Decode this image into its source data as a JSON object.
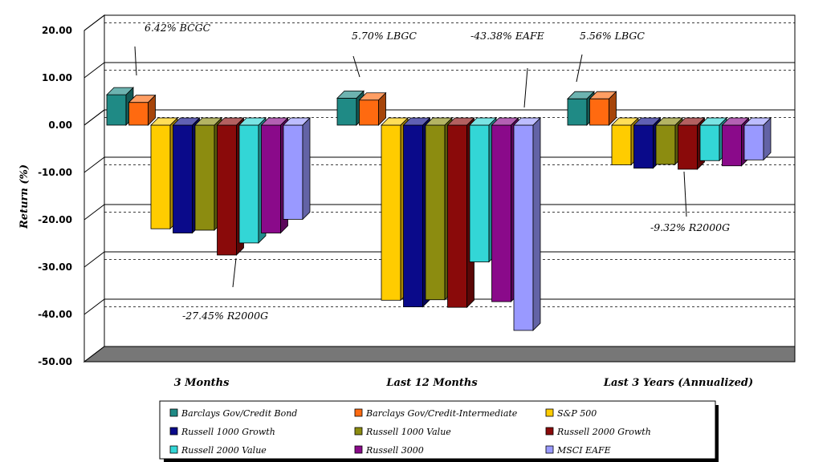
{
  "chart_data": {
    "type": "bar",
    "ylabel": "Return (%)",
    "ylim": [
      -50,
      20
    ],
    "yticks": [
      "20.00",
      "10.00",
      "0.00",
      "-10.00",
      "-20.00",
      "-30.00",
      "-40.00",
      "-50.00"
    ],
    "grid": true,
    "legend_placement": "bottom",
    "categories": [
      "3 Months",
      "Last 12 Months",
      "Last 3 Years (Annualized)"
    ],
    "series": [
      {
        "name": "Barclays Gov/Credit Bond",
        "color": "#1f8a85",
        "values": [
          6.42,
          5.7,
          5.56
        ]
      },
      {
        "name": "Barclays Gov/Credit-Intermediate",
        "color": "#ff6a10",
        "values": [
          4.8,
          5.3,
          5.56
        ]
      },
      {
        "name": "S&P 500",
        "color": "#ffcc00",
        "values": [
          -21.9,
          -37.0,
          -8.4
        ]
      },
      {
        "name": "Russell 1000 Growth",
        "color": "#0a0a8a",
        "values": [
          -22.8,
          -38.4,
          -9.1
        ]
      },
      {
        "name": "Russell 1000 Value",
        "color": "#8c8c10",
        "values": [
          -22.2,
          -36.9,
          -8.3
        ]
      },
      {
        "name": "Russell 2000 Growth",
        "color": "#8a0a0a",
        "values": [
          -27.45,
          -38.5,
          -9.32
        ]
      },
      {
        "name": "Russell 2000 Value",
        "color": "#33d6d6",
        "values": [
          -24.9,
          -28.9,
          -7.5
        ]
      },
      {
        "name": "Russell 3000",
        "color": "#8a0a8a",
        "values": [
          -22.8,
          -37.3,
          -8.6
        ]
      },
      {
        "name": "MSCI EAFE",
        "color": "#9999ff",
        "values": [
          -19.9,
          -43.38,
          -7.35
        ]
      }
    ],
    "annotations": [
      "6.42% BCGC",
      "-27.45% R2000G",
      "5.70% LBGC",
      "-43.38% EAFE",
      "5.56% LBGC",
      "-9.32% R2000G"
    ]
  }
}
